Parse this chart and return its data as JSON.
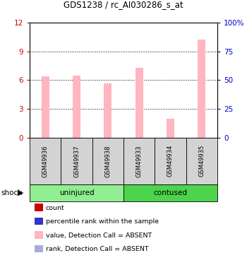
{
  "title": "GDS1238 / rc_AI030286_s_at",
  "samples": [
    "GSM49936",
    "GSM49937",
    "GSM49938",
    "GSM49933",
    "GSM49934",
    "GSM49935"
  ],
  "bar_values": [
    6.4,
    6.5,
    5.7,
    7.3,
    2.0,
    10.2
  ],
  "rank_values": [
    0.12,
    0.12,
    0.12,
    0.12,
    0.12,
    0.12
  ],
  "ylim_left": [
    0,
    12
  ],
  "ylim_right": [
    0,
    100
  ],
  "yticks_left": [
    0,
    3,
    6,
    9,
    12
  ],
  "yticks_right": [
    0,
    25,
    50,
    75,
    100
  ],
  "ytick_labels_left": [
    "0",
    "3",
    "6",
    "9",
    "12"
  ],
  "ytick_labels_right": [
    "0",
    "25",
    "50",
    "75",
    "100%"
  ],
  "groups": [
    {
      "label": "uninjured",
      "start": 0,
      "end": 3,
      "color": "#90EE90"
    },
    {
      "label": "contused",
      "start": 3,
      "end": 6,
      "color": "#4CD44C"
    }
  ],
  "shock_label": "shock",
  "bar_color": "#FFB6C1",
  "rank_dot_color": "#3333CC",
  "left_axis_color": "#CC0000",
  "right_axis_color": "#0000CC",
  "grid_color": "#000000",
  "sample_box_color": "#D3D3D3",
  "legend_items": [
    {
      "color": "#CC0000",
      "label": "count"
    },
    {
      "color": "#3333CC",
      "label": "percentile rank within the sample"
    },
    {
      "color": "#FFB6C1",
      "label": "value, Detection Call = ABSENT"
    },
    {
      "color": "#AAAADD",
      "label": "rank, Detection Call = ABSENT"
    }
  ]
}
